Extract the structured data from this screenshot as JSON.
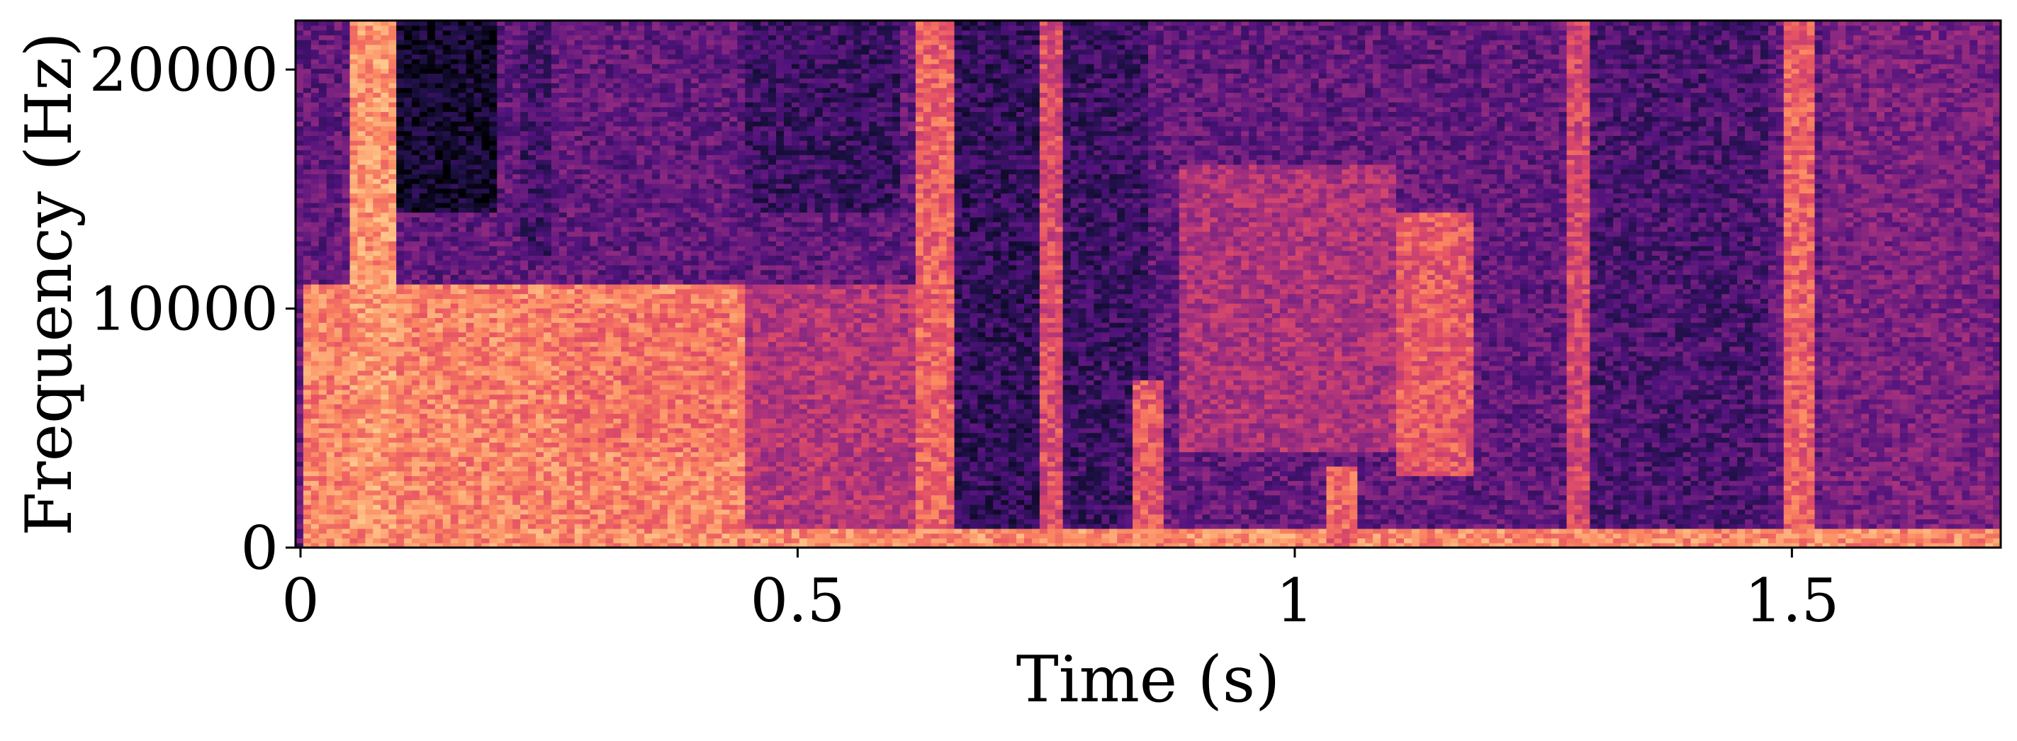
{
  "chart_data": {
    "type": "heatmap",
    "title": "",
    "xlabel": "Time (s)",
    "ylabel": "Frequency (Hz)",
    "xlim": [
      -0.005,
      1.71
    ],
    "ylim": [
      0,
      22050
    ],
    "x_ticks": [
      {
        "value": 0,
        "label": "0"
      },
      {
        "value": 0.5,
        "label": "0.5"
      },
      {
        "value": 1,
        "label": "1"
      },
      {
        "value": 1.5,
        "label": "1.5"
      }
    ],
    "y_ticks": [
      {
        "value": 0,
        "label": "0"
      },
      {
        "value": 10000,
        "label": "10000"
      },
      {
        "value": 20000,
        "label": "20000"
      }
    ],
    "colormap": "magma",
    "colormap_stops": [
      "#000004",
      "#1c1044",
      "#4f127b",
      "#812581",
      "#b5367a",
      "#e55064",
      "#fb8761",
      "#fec287",
      "#fcfdbf"
    ],
    "grid": false,
    "legend": "none",
    "spectrogram_regions": [
      {
        "t0": 0.0,
        "t1": 0.45,
        "f0": 0,
        "f1": 11000,
        "level": 0.74
      },
      {
        "t0": 0.05,
        "t1": 0.1,
        "f0": 0,
        "f1": 22050,
        "level": 0.78
      },
      {
        "t0": 0.1,
        "t1": 0.2,
        "f0": 14000,
        "f1": 22050,
        "level": 0.08
      },
      {
        "t0": 0.22,
        "t1": 0.25,
        "f0": 12000,
        "f1": 22050,
        "level": 0.22
      },
      {
        "t0": 0.27,
        "t1": 0.43,
        "f0": 4000,
        "f1": 10000,
        "level": 0.7
      },
      {
        "t0": 0.45,
        "t1": 0.62,
        "f0": 0,
        "f1": 11000,
        "level": 0.5
      },
      {
        "t0": 0.45,
        "t1": 0.6,
        "f0": 14000,
        "f1": 22050,
        "level": 0.2
      },
      {
        "t0": 0.62,
        "t1": 0.66,
        "f0": 0,
        "f1": 22050,
        "level": 0.66
      },
      {
        "t0": 0.66,
        "t1": 0.74,
        "f0": 0,
        "f1": 22050,
        "level": 0.18
      },
      {
        "t0": 0.74,
        "t1": 0.77,
        "f0": 0,
        "f1": 22050,
        "level": 0.6
      },
      {
        "t0": 0.77,
        "t1": 0.85,
        "f0": 0,
        "f1": 22050,
        "level": 0.2
      },
      {
        "t0": 0.84,
        "t1": 0.87,
        "f0": 0,
        "f1": 7000,
        "level": 0.64
      },
      {
        "t0": 0.88,
        "t1": 1.1,
        "f0": 4000,
        "f1": 16000,
        "level": 0.48
      },
      {
        "t0": 1.1,
        "t1": 1.18,
        "f0": 3000,
        "f1": 14000,
        "level": 0.64
      },
      {
        "t0": 1.27,
        "t1": 1.3,
        "f0": 0,
        "f1": 22050,
        "level": 0.58
      },
      {
        "t0": 1.3,
        "t1": 1.48,
        "f0": 0,
        "f1": 22050,
        "level": 0.24
      },
      {
        "t0": 1.49,
        "t1": 1.52,
        "f0": 0,
        "f1": 22050,
        "level": 0.66
      },
      {
        "t0": 1.53,
        "t1": 1.71,
        "f0": 0,
        "f1": 22050,
        "level": 0.36
      },
      {
        "t0": 0.0,
        "t1": 1.71,
        "f0": 0,
        "f1": 900,
        "level": 0.76
      },
      {
        "t0": 1.03,
        "t1": 1.06,
        "f0": 0,
        "f1": 3500,
        "level": 0.68
      }
    ]
  }
}
